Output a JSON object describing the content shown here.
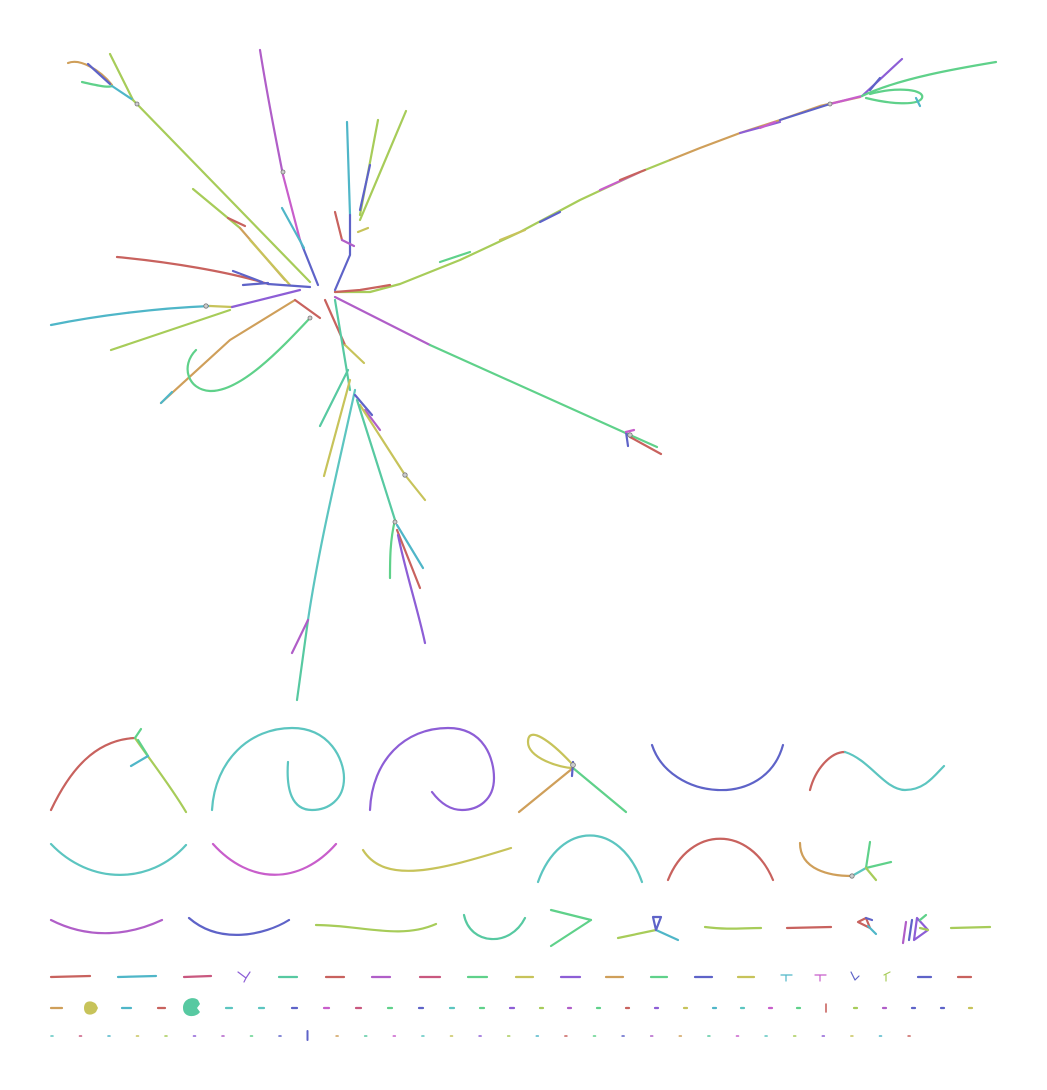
{
  "palette": {
    "red": "#c8625e",
    "teal": "#5cc5c0",
    "green": "#5fd18a",
    "lime": "#a7cc59",
    "olive": "#c7c35a",
    "purple": "#b05ec8",
    "violet": "#8d5ed6",
    "blue": "#5e63c8",
    "cyan": "#4fb6c8",
    "orange": "#cf9f5a",
    "magenta": "#c85ecb",
    "sea": "#57c9a1",
    "rose": "#c9587f",
    "node": "#cccccc"
  },
  "graph": {
    "description_visible_text": "",
    "components": {
      "main": 1,
      "medium": 22,
      "small_fragments": 75
    }
  }
}
